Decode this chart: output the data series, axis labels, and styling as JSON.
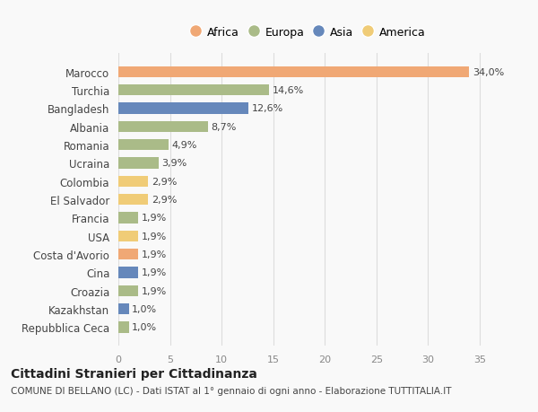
{
  "countries": [
    "Marocco",
    "Turchia",
    "Bangladesh",
    "Albania",
    "Romania",
    "Ucraina",
    "Colombia",
    "El Salvador",
    "Francia",
    "USA",
    "Costa d'Avorio",
    "Cina",
    "Croazia",
    "Kazakhstan",
    "Repubblica Ceca"
  ],
  "values": [
    34.0,
    14.6,
    12.6,
    8.7,
    4.9,
    3.9,
    2.9,
    2.9,
    1.9,
    1.9,
    1.9,
    1.9,
    1.9,
    1.0,
    1.0
  ],
  "labels": [
    "34,0%",
    "14,6%",
    "12,6%",
    "8,7%",
    "4,9%",
    "3,9%",
    "2,9%",
    "2,9%",
    "1,9%",
    "1,9%",
    "1,9%",
    "1,9%",
    "1,9%",
    "1,0%",
    "1,0%"
  ],
  "continents": [
    "Africa",
    "Europa",
    "Asia",
    "Europa",
    "Europa",
    "Europa",
    "America",
    "America",
    "Europa",
    "America",
    "Africa",
    "Asia",
    "Europa",
    "Asia",
    "Europa"
  ],
  "continent_colors": {
    "Africa": "#F0A875",
    "Europa": "#AABB88",
    "Asia": "#6688BB",
    "America": "#F0CC77"
  },
  "legend_order": [
    "Africa",
    "Europa",
    "Asia",
    "America"
  ],
  "title": "Cittadini Stranieri per Cittadinanza",
  "subtitle": "COMUNE DI BELLANO (LC) - Dati ISTAT al 1° gennaio di ogni anno - Elaborazione TUTTITALIA.IT",
  "xlim": [
    0,
    37
  ],
  "xticks": [
    0,
    5,
    10,
    15,
    20,
    25,
    30,
    35
  ],
  "bg_color": "#f9f9f9",
  "grid_color": "#dddddd"
}
